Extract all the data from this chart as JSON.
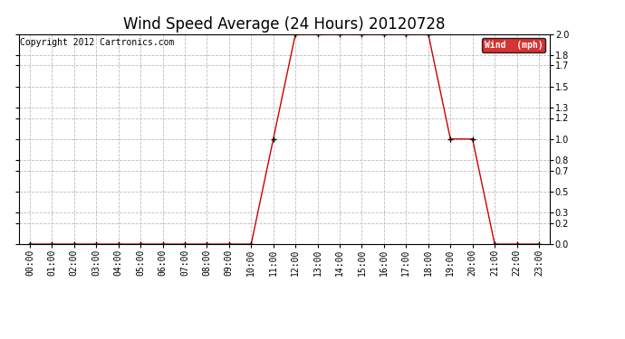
{
  "title": "Wind Speed Average (24 Hours) 20120728",
  "copyright": "Copyright 2012 Cartronics.com",
  "legend_label": "Wind  (mph)",
  "legend_bg": "#cc0000",
  "legend_text_color": "#ffffff",
  "x_labels": [
    "00:00",
    "01:00",
    "02:00",
    "03:00",
    "04:00",
    "05:00",
    "06:00",
    "07:00",
    "08:00",
    "09:00",
    "10:00",
    "11:00",
    "12:00",
    "13:00",
    "14:00",
    "15:00",
    "16:00",
    "17:00",
    "18:00",
    "19:00",
    "20:00",
    "21:00",
    "22:00",
    "23:00"
  ],
  "x_values": [
    0,
    1,
    2,
    3,
    4,
    5,
    6,
    7,
    8,
    9,
    10,
    11,
    12,
    13,
    14,
    15,
    16,
    17,
    18,
    19,
    20,
    21,
    22,
    23
  ],
  "y_values": [
    0,
    0,
    0,
    0,
    0,
    0,
    0,
    0,
    0,
    0,
    0,
    1,
    2,
    2,
    2,
    2,
    2,
    2,
    2,
    1,
    1,
    0,
    0,
    0
  ],
  "line_color": "#cc0000",
  "marker_color": "#000000",
  "ylim": [
    0.0,
    2.0
  ],
  "yticks": [
    0.0,
    0.2,
    0.3,
    0.5,
    0.7,
    0.8,
    1.0,
    1.2,
    1.3,
    1.5,
    1.7,
    1.8,
    2.0
  ],
  "bg_color": "#ffffff",
  "grid_color": "#bbbbbb",
  "title_fontsize": 12,
  "copyright_fontsize": 7,
  "tick_fontsize": 7,
  "legend_fontsize": 7
}
